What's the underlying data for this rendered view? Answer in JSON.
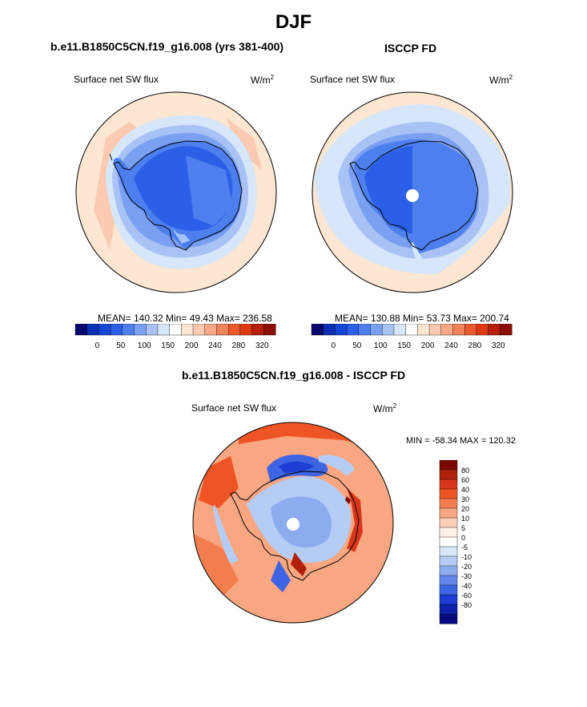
{
  "figure": {
    "title": "DJF"
  },
  "panel_model": {
    "title": "b.e11.B1850C5CN.f19_g16.008 (yrs 381-400)",
    "field": "Surface net SW flux",
    "units": "W/m",
    "units_exp": "2",
    "stats": "MEAN= 140.32  Min=  49.43  Max= 236.58"
  },
  "panel_obs": {
    "title": "ISCCP FD",
    "field": "Surface net SW flux",
    "units": "W/m",
    "units_exp": "2",
    "stats": "MEAN= 130.88  Min=  53.73  Max= 200.74"
  },
  "panel_diff": {
    "title": "b.e11.B1850C5CN.f19_g16.008 - ISCCP FD",
    "field": "Surface net SW flux",
    "units": "W/m",
    "units_exp": "2",
    "minmax": "MIN = -58.34 MAX = 120.32"
  },
  "colorbar_abs": {
    "tick_labels": [
      "0",
      "50",
      "100",
      "150",
      "200",
      "240",
      "280",
      "320"
    ],
    "colors": [
      "#08086e",
      "#0a2fb4",
      "#1446d8",
      "#2b5fe8",
      "#4d80ee",
      "#7aa0f2",
      "#a8c2f6",
      "#d6e6fb",
      "#ffffff",
      "#fde6d2",
      "#fbcab0",
      "#f8a884",
      "#f2835a",
      "#ec5a2c",
      "#dd3a12",
      "#b81e0a",
      "#8c0d04"
    ]
  },
  "colorbar_diff": {
    "tick_labels": [
      "80",
      "60",
      "40",
      "30",
      "20",
      "10",
      "5",
      "0",
      "-5",
      "-10",
      "-20",
      "-30",
      "-40",
      "-60",
      "-80"
    ],
    "colors": [
      "#7a0a00",
      "#b0200a",
      "#d8361a",
      "#ee5424",
      "#f47d4e",
      "#f8a782",
      "#fbcdb4",
      "#fff0e8",
      "#ffffff",
      "#d8e6fa",
      "#b5ccf5",
      "#8cacf0",
      "#6286ea",
      "#3d64e2",
      "#1c3ed2",
      "#0c20a8",
      "#060a80"
    ]
  }
}
